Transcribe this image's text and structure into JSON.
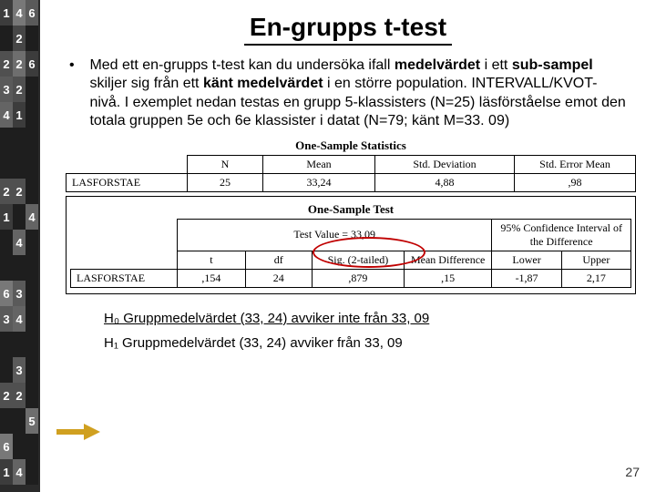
{
  "sidebar": {
    "rows": [
      [
        "1",
        "4",
        "6"
      ],
      [
        " ",
        "2",
        " "
      ],
      [
        "2",
        "2",
        "6"
      ],
      [
        "3",
        "2",
        " "
      ],
      [
        "4",
        "1",
        " "
      ],
      [
        " ",
        " ",
        " "
      ],
      [
        " ",
        " ",
        " "
      ],
      [
        "2",
        "2",
        " "
      ],
      [
        "1",
        " ",
        "4"
      ],
      [
        " ",
        "4",
        " "
      ],
      [
        " ",
        " ",
        " "
      ],
      [
        "6",
        "3",
        " "
      ],
      [
        "3",
        "4",
        " "
      ],
      [
        " ",
        " ",
        " "
      ],
      [
        " ",
        "3",
        " "
      ],
      [
        "2",
        "2",
        " "
      ],
      [
        " ",
        " ",
        "5"
      ],
      [
        "6",
        " ",
        " "
      ],
      [
        "1",
        "4",
        " "
      ]
    ],
    "shades": [
      [
        60,
        120,
        90
      ],
      [
        30,
        70,
        30
      ],
      [
        80,
        110,
        60
      ],
      [
        90,
        80,
        30
      ],
      [
        100,
        60,
        30
      ],
      [
        30,
        30,
        30
      ],
      [
        30,
        30,
        30
      ],
      [
        80,
        80,
        30
      ],
      [
        60,
        30,
        100
      ],
      [
        30,
        100,
        30
      ],
      [
        30,
        30,
        30
      ],
      [
        120,
        90,
        30
      ],
      [
        90,
        100,
        30
      ],
      [
        30,
        30,
        30
      ],
      [
        30,
        90,
        30
      ],
      [
        80,
        80,
        30
      ],
      [
        30,
        30,
        110
      ],
      [
        120,
        30,
        30
      ],
      [
        60,
        100,
        30
      ]
    ]
  },
  "title": "En-grupps t-test",
  "body": {
    "bullet": "•",
    "text_html": "Med ett en-grupps t-test kan du undersöka ifall <b>medelvärdet</b> i ett <b>sub-sampel</b> skiljer sig från ett <b>känt medelvärdet</b> i en större population. INTERVALL/KVOT-nivå. I exemplet nedan testas en grupp 5-klassisters (N=25) läsförståelse emot den totala gruppen 5e och 6e klassister i datat (N=79; känt M=33. 09)"
  },
  "table1": {
    "title": "One-Sample Statistics",
    "headers": [
      "",
      "N",
      "Mean",
      "Std. Deviation",
      "Std. Error Mean"
    ],
    "row": [
      "LASFORSTAE",
      "25",
      "33,24",
      "4,88",
      ",98"
    ]
  },
  "table2": {
    "title": "One-Sample Test",
    "testvalue": "Test Value = 33,09",
    "ci_label": "95% Confidence Interval of the Difference",
    "headers2": [
      "",
      "t",
      "df",
      "Sig. (2-tailed)",
      "Mean Difference",
      "Lower",
      "Upper"
    ],
    "row": [
      "LASFORSTAE",
      ",154",
      "24",
      ",879",
      ",15",
      "-1,87",
      "2,17"
    ]
  },
  "hypotheses": {
    "h0": "H₀ Gruppmedelvärdet (33, 24) avviker inte från 33, 09",
    "h1": "H₁ Gruppmedelvärdet (33, 24) avviker från 33, 09"
  },
  "arrow_color": "#d0a020",
  "ellipse_color": "#c00000",
  "pagenum": "27"
}
